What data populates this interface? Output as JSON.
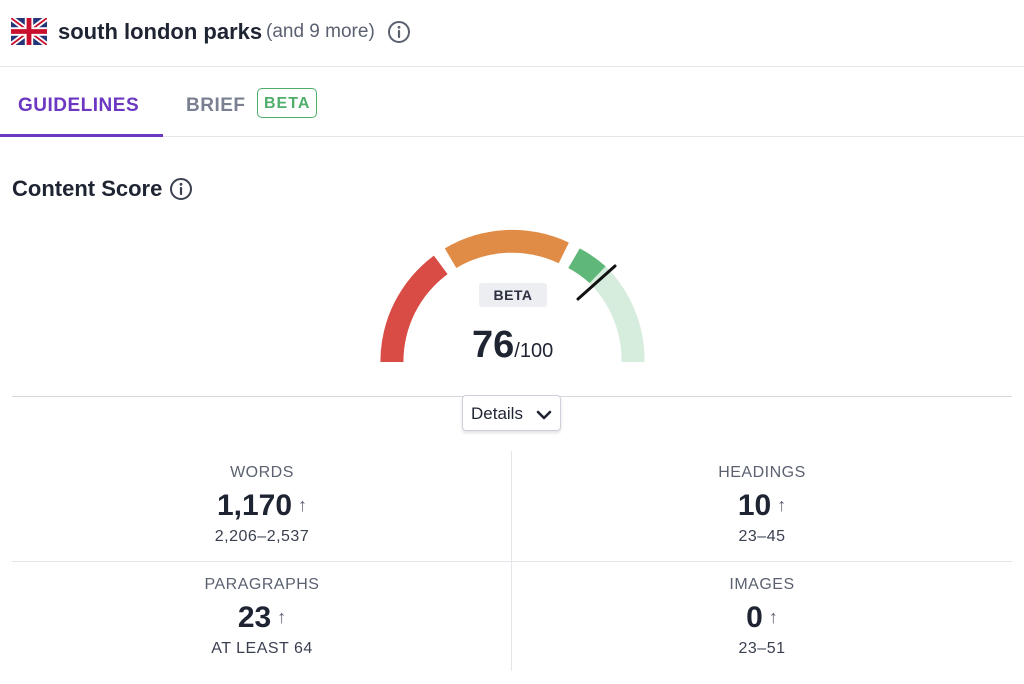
{
  "header": {
    "flag_icon": "uk-flag-icon",
    "keyword": "south london parks",
    "more": "(and 9 more)",
    "info_icon": "info-icon"
  },
  "tabs": [
    {
      "label": "GUIDELINES",
      "active": true
    },
    {
      "label": "BRIEF",
      "badge": "BETA",
      "active": false
    }
  ],
  "content_score": {
    "title": "Content Score",
    "badge": "BETA",
    "value": "76",
    "max": "/100",
    "score_fraction": 0.76,
    "details_label": "Details"
  },
  "stats": {
    "words": {
      "label": "WORDS",
      "value": "1,170",
      "arrow": "↑",
      "range": "2,206–2,537"
    },
    "headings": {
      "label": "HEADINGS",
      "value": "10",
      "arrow": "↑",
      "range": "23–45"
    },
    "paragraphs": {
      "label": "PARAGRAPHS",
      "value": "23",
      "arrow": "↑",
      "range": "AT LEAST 64"
    },
    "images": {
      "label": "IMAGES",
      "value": "0",
      "arrow": "↑",
      "range": "23–51"
    }
  },
  "colors": {
    "accent": "#6c38c2",
    "beta_green": "#4fae6a",
    "gauge_red": "#d94c45",
    "gauge_orange": "#e08c46",
    "gauge_green": "#5fb779",
    "gauge_light_green": "#d6ecdc"
  }
}
